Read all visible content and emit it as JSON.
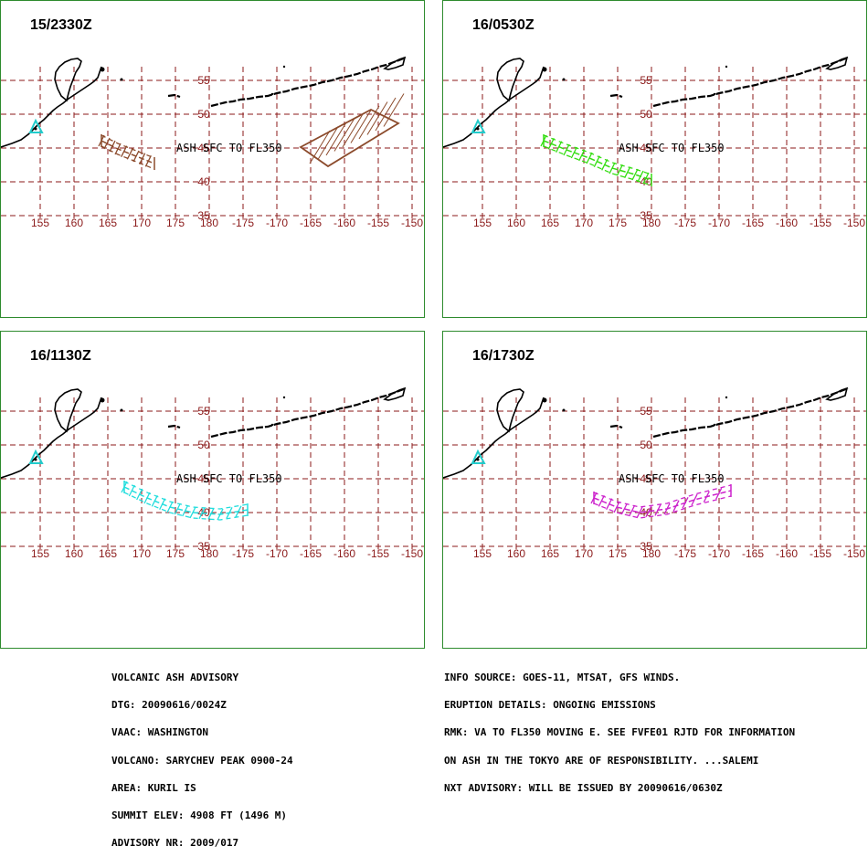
{
  "panels": [
    {
      "title": "15/2330Z",
      "ash_label": "ASH SFC TO FL350",
      "color": "#8b4a2b",
      "kind": "p1"
    },
    {
      "title": "16/0530Z",
      "ash_label": "ASH SFC TO FL350",
      "color": "#33dd11",
      "kind": "p2"
    },
    {
      "title": "16/1130Z",
      "ash_label": "ASH SFC TO FL350",
      "color": "#22dddd",
      "kind": "p3"
    },
    {
      "title": "16/1730Z",
      "ash_label": "ASH SFC TO FL350",
      "color": "#cc22cc",
      "kind": "p4"
    }
  ],
  "lon_labels": [
    "155",
    "160",
    "165",
    "170",
    "175",
    "180",
    "-175",
    "-170",
    "-165",
    "-160",
    "-155",
    "-150"
  ],
  "lat_labels": [
    "55",
    "50",
    "45",
    "40",
    "35"
  ],
  "colors": {
    "grid": "#8b1a1a",
    "border": "#2e8b2e",
    "volcano": "#22cccc",
    "coast": "#000000"
  },
  "advisory_left": [
    "VOLCANIC ASH ADVISORY",
    "DTG: 20090616/0024Z",
    "VAAC: WASHINGTON",
    "VOLCANO: SARYCHEV PEAK 0900-24",
    "AREA: KURIL IS",
    "SUMMIT ELEV: 4908 FT (1496 M)",
    "ADVISORY NR: 2009/017"
  ],
  "advisory_right": [
    "INFO SOURCE: GOES-11, MTSAT, GFS WINDS.",
    "ERUPTION DETAILS: ONGOING EMISSIONS",
    "RMK: VA TO FL350 MOVING E. SEE FVFE01 RJTD FOR INFORMATION",
    "ON ASH IN THE TOKYO ARE OF RESPONSIBILITY. ...SALEMI",
    "NXT ADVISORY: WILL BE ISSUED BY 20090616/0630Z"
  ]
}
